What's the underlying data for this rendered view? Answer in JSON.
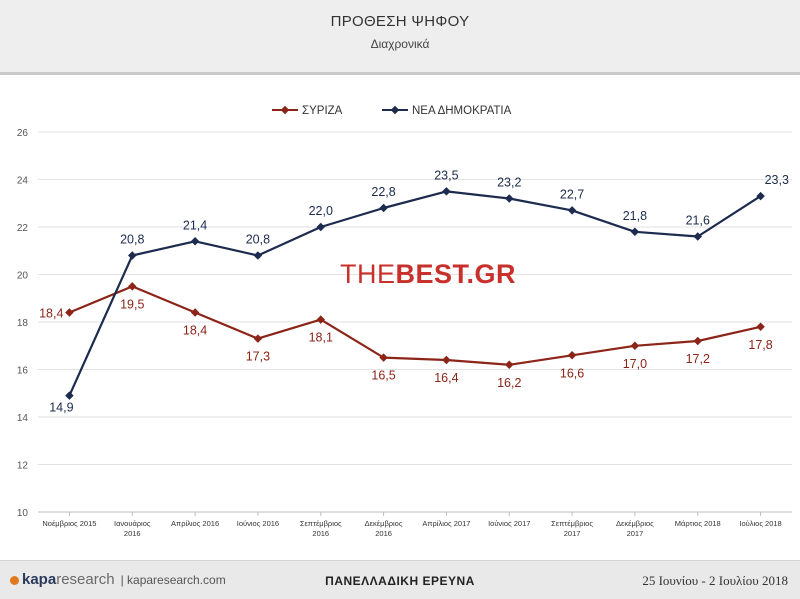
{
  "header": {
    "title": "ΠΡΟΘΕΣΗ ΨΗΦΟΥ",
    "subtitle": "Διαχρονικά"
  },
  "watermark": {
    "light": "THE",
    "bold": "BEST.GR"
  },
  "footer": {
    "brand_bold": "kapa",
    "brand_rest": "research",
    "site": "| kaparesearch.com",
    "survey": "ΠΑΝΕΛΛΑΔΙΚΗ ΕΡΕΥΝΑ",
    "dates": "25 Ιουνίου - 2 Ιουλίου 2018"
  },
  "colors": {
    "syriza": "#8c2418",
    "nd": "#1c2b4e",
    "grid": "#e2e2e2",
    "axis_text": "#555555"
  },
  "chart_data": {
    "type": "line",
    "categories": [
      [
        "Νοέμβριος 2015"
      ],
      [
        "Ιανουάριος",
        "2016"
      ],
      [
        "Απρίλιος 2016"
      ],
      [
        "Ιούνιος 2016"
      ],
      [
        "Σεπτέμβριος",
        "2016"
      ],
      [
        "Δεκέμβριος",
        "2016"
      ],
      [
        "Απρίλιος 2017"
      ],
      [
        "Ιούνιος 2017"
      ],
      [
        "Σεπτέμβριος",
        "2017"
      ],
      [
        "Δεκέμβριος",
        "2017"
      ],
      [
        "Μάρτιος 2018"
      ],
      [
        "Ιούλιος 2018"
      ]
    ],
    "series": [
      {
        "name": "ΣΥΡΙΖΑ",
        "color": "#8c2418",
        "values": [
          18.4,
          19.5,
          18.4,
          17.3,
          18.1,
          16.5,
          16.4,
          16.2,
          16.6,
          17.0,
          17.2,
          17.8
        ],
        "labels": [
          "18,4",
          "19,5",
          "18,4",
          "17,3",
          "18,1",
          "16,5",
          "16,4",
          "16,2",
          "16,6",
          "17,0",
          "17,2",
          "17,8"
        ]
      },
      {
        "name": "ΝΕΑ ΔΗΜΟΚΡΑΤΙΑ",
        "color": "#1c2b4e",
        "values": [
          14.9,
          20.8,
          21.4,
          20.8,
          22.0,
          22.8,
          23.5,
          23.2,
          22.7,
          21.8,
          21.6,
          23.3
        ],
        "labels": [
          "14,9",
          "20,8",
          "21,4",
          "20,8",
          "22,0",
          "22,8",
          "23,5",
          "23,2",
          "22,7",
          "21,8",
          "21,6",
          "23,3"
        ]
      }
    ],
    "ylim": [
      10,
      26
    ],
    "yticks": [
      10,
      12,
      14,
      16,
      18,
      20,
      22,
      24,
      26
    ],
    "grid": true,
    "legend": "top-center"
  }
}
